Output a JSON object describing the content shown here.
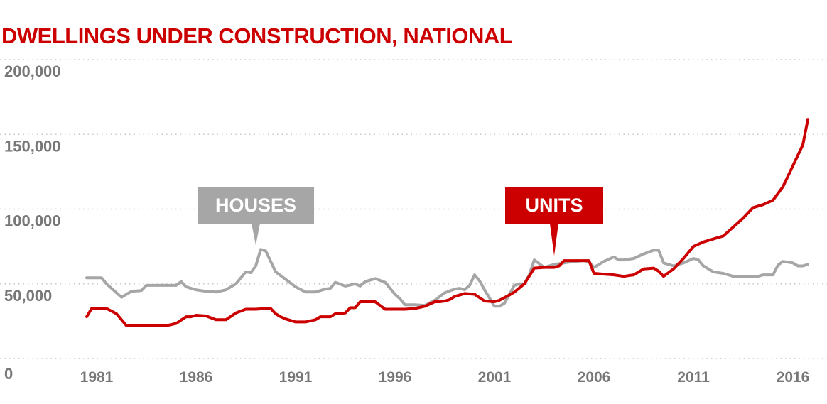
{
  "chart_data": {
    "type": "line",
    "title": "DWELLINGS UNDER CONSTRUCTION, NATIONAL",
    "xlabel": "",
    "ylabel": "",
    "xlim": [
      1980,
      2017
    ],
    "ylim": [
      0,
      200000
    ],
    "x_ticks": [
      "1981",
      "1986",
      "1991",
      "1996",
      "2001",
      "2006",
      "2011",
      "2016"
    ],
    "y_ticks": [
      "0",
      "50,000",
      "100,000",
      "150,000",
      "200,000"
    ],
    "grid": true,
    "legend": "none",
    "colors": {
      "houses": "#a6a6a6",
      "units": "#cc0000",
      "title": "#cc0000",
      "axis_text": "#777777"
    },
    "series": [
      {
        "name": "HOUSES",
        "color": "#a6a6a6",
        "x": [
          1980.5,
          1981.25,
          1981.5,
          1982,
          1982.25,
          1982.75,
          1983.25,
          1983.5,
          1984,
          1984.5,
          1985,
          1985.25,
          1985.5,
          1986,
          1986.5,
          1987,
          1987.5,
          1988,
          1988.5,
          1988.75,
          1989,
          1989.25,
          1989.5,
          1990,
          1990.5,
          1991,
          1991.5,
          1992,
          1992.5,
          1992.75,
          1993,
          1993.5,
          1994,
          1994.25,
          1994.5,
          1995,
          1995.5,
          1996,
          1996.25,
          1996.5,
          1997,
          1997.5,
          1998,
          1998.5,
          1999,
          1999.25,
          1999.5,
          1999.75,
          2000,
          2000.25,
          2000.5,
          2001,
          2001.25,
          2001.5,
          2002,
          2002.25,
          2002.5,
          2002.75,
          2003,
          2003.5,
          2004,
          2004.5,
          2005,
          2005.5,
          2005.75,
          2006,
          2006.5,
          2007,
          2007.25,
          2007.5,
          2008,
          2008.5,
          2009,
          2009.25,
          2009.5,
          2010,
          2010.5,
          2011,
          2011.25,
          2011.5,
          2012,
          2012.5,
          2013,
          2013.5,
          2014,
          2014.25,
          2014.5,
          2015,
          2015.25,
          2015.5,
          2016,
          2016.25,
          2016.5,
          2016.75
        ],
        "values": [
          54000,
          54000,
          50000,
          44000,
          41000,
          45000,
          45500,
          49000,
          49000,
          49000,
          49000,
          51500,
          48000,
          46000,
          45000,
          44500,
          46000,
          50000,
          58000,
          57500,
          62000,
          73000,
          72000,
          58000,
          53000,
          48000,
          44500,
          44500,
          46500,
          47000,
          51000,
          48500,
          50000,
          48500,
          51500,
          53500,
          51000,
          43000,
          40000,
          36000,
          36000,
          35500,
          39000,
          44000,
          46500,
          47000,
          46000,
          49000,
          56000,
          52000,
          46000,
          35000,
          35000,
          37000,
          49000,
          50000,
          50000,
          56000,
          66000,
          61000,
          63000,
          64000,
          65000,
          65500,
          64500,
          61000,
          65000,
          68000,
          66000,
          66000,
          67000,
          70000,
          72500,
          72500,
          64000,
          62000,
          64000,
          67000,
          66000,
          62000,
          58000,
          57000,
          55000,
          55000,
          55000,
          55000,
          56000,
          56000,
          62500,
          65000,
          64000,
          62000,
          62000,
          63000
        ]
      },
      {
        "name": "UNITS",
        "color": "#cc0000",
        "x": [
          1980.5,
          1980.75,
          1981.5,
          1982,
          1982.5,
          1983,
          1983.5,
          1984,
          1984.5,
          1985,
          1985.5,
          1985.75,
          1986,
          1986.5,
          1987,
          1987.5,
          1988,
          1988.5,
          1989,
          1989.5,
          1989.75,
          1990,
          1990.25,
          1990.5,
          1991,
          1991.5,
          1992,
          1992.25,
          1992.75,
          1993,
          1993.5,
          1993.75,
          1994,
          1994.25,
          1994.5,
          1995,
          1995.5,
          1996,
          1996.5,
          1997,
          1997.5,
          1998,
          1998.25,
          1998.5,
          1998.75,
          1999,
          1999.5,
          2000,
          2000.5,
          2001,
          2001.25,
          2001.75,
          2002,
          2002.5,
          2003,
          2003.5,
          2004,
          2004.25,
          2004.5,
          2005,
          2005.5,
          2005.75,
          2006,
          2006.5,
          2007,
          2007.5,
          2008,
          2008.5,
          2009,
          2009.25,
          2009.5,
          2010,
          2010.5,
          2011,
          2011.5,
          2012,
          2012.5,
          2013,
          2013.5,
          2014,
          2014.5,
          2015,
          2015.5,
          2016,
          2016.5,
          2016.75
        ],
        "values": [
          28000,
          33500,
          33500,
          30000,
          22000,
          22000,
          22000,
          22000,
          22000,
          23500,
          28000,
          28000,
          29000,
          28500,
          26000,
          26000,
          30500,
          33000,
          33000,
          33500,
          33500,
          30000,
          28000,
          26500,
          24500,
          24500,
          26000,
          28000,
          28000,
          30000,
          30500,
          34000,
          34000,
          38000,
          38000,
          38000,
          33000,
          33000,
          33000,
          33500,
          35000,
          38000,
          38000,
          38500,
          39500,
          41500,
          43500,
          43000,
          38500,
          38000,
          39000,
          42500,
          44500,
          50000,
          60500,
          61000,
          61000,
          62000,
          65500,
          65500,
          65500,
          65500,
          57000,
          56500,
          56000,
          55000,
          56000,
          60000,
          60500,
          58500,
          55000,
          60000,
          67000,
          75000,
          78000,
          80000,
          82000,
          88000,
          94000,
          101000,
          103000,
          106000,
          115000,
          129000,
          143000,
          160000
        ]
      }
    ],
    "annotations": [
      {
        "text": "HOUSES",
        "color": "#a6a6a6",
        "points_to": {
          "x": 1989,
          "y": 73000
        }
      },
      {
        "text": "UNITS",
        "color": "#cc0000",
        "points_to": {
          "x": 2004,
          "y": 66000
        }
      }
    ]
  }
}
